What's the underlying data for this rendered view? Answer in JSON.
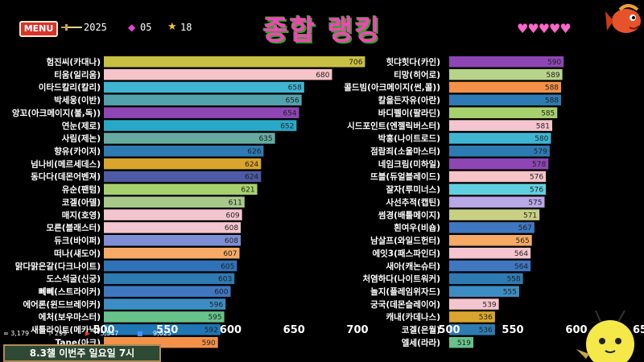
{
  "header": {
    "menu_label": "MENU",
    "year": "2025",
    "gem_count": "05",
    "star_count": "18",
    "title": "종합 랭킹",
    "hearts": "♥♥♥♥♥"
  },
  "footer": {
    "stat1": "3,179",
    "stat2": "299",
    "stat3": "5,547",
    "stat4": "9,025",
    "banner": "8.3챌 이번주 일요일 7시"
  },
  "colors": {
    "title": "#ff3fbf",
    "menu_button": "#d8322b",
    "background": "#000000"
  },
  "chart_data": [
    {
      "type": "bar",
      "orientation": "horizontal",
      "xlim": [
        500,
        700
      ],
      "ticks": [
        "500",
        "550",
        "600",
        "650",
        "700"
      ],
      "categories": [
        "험진씨(카대나)",
        "티움(일리움)",
        "이타드칼리(칼리)",
        "박세웅(이반)",
        "앙꼬(아크메이지(불,독))",
        "연눈(제로)",
        "사림(제논)",
        "향유(카이저)",
        "넘나비(메르세데스)",
        "동다다(데몬어벤져)",
        "유순(팬텀)",
        "코겔(아델)",
        "매지(호영)",
        "모른(블래스터)",
        "듀크(바이퍼)",
        "떠나(섀도어)",
        "맑다맑은갈(다크나이트)",
        "도스석굴(신궁)",
        "뻬뻬(스트라이커)",
        "에어론(윈드브레이커)",
        "에처(보우마스터)",
        "새틀라이트(메카닉)",
        "Tane(아크)"
      ],
      "values": [
        706,
        680,
        658,
        656,
        654,
        652,
        635,
        626,
        624,
        624,
        621,
        611,
        609,
        608,
        608,
        607,
        605,
        603,
        600,
        596,
        595,
        592,
        590
      ],
      "colors": [
        "#c8c043",
        "#f6c3c7",
        "#3fb5d2",
        "#51a2ab",
        "#8d46b4",
        "#28a8c8",
        "#66aaa0",
        "#2e7bb3",
        "#d9a52c",
        "#4d5aa5",
        "#a7d16d",
        "#a6c98b",
        "#f4c5cf",
        "#f4c5cf",
        "#7f8fd6",
        "#f6aa66",
        "#3072b8",
        "#2e7bb3",
        "#3f77c1",
        "#3c8dc4",
        "#67c38a",
        "#1f76b5",
        "#f39149"
      ]
    },
    {
      "type": "bar",
      "orientation": "horizontal",
      "xlim": [
        500,
        650
      ],
      "ticks": [
        "500",
        "550",
        "600",
        "65"
      ],
      "categories": [
        "힛댜힛다(카인)",
        "티망(히어로)",
        "콜드빔(아크메이지(썬,콜))",
        "칼을든자유(아란)",
        "바디펠이(팔라딘)",
        "시드포인트(엔젤릭버스터)",
        "박홍(나이트로드)",
        "점람죄(소울마스터)",
        "네임크림(미하일)",
        "뜨블(듀얼블레이드)",
        "잘자(루미너스)",
        "사선추적(캡틴)",
        "썸경(배틀메이지)",
        "흰여우(비숍)",
        "남살프(와일드헌터)",
        "에잇3(패스파인더)",
        "새아(캐논슈터)",
        "처염하다(나이트워커)",
        "놀지(플레임위자드)",
        "궁국(데몬슬레이어)",
        "캐내(카데나스)",
        "코겔(은월)",
        "엘세(라라)"
      ],
      "values": [
        590,
        589,
        588,
        588,
        585,
        581,
        580,
        579,
        578,
        576,
        576,
        575,
        571,
        567,
        565,
        564,
        564,
        558,
        555,
        539,
        536,
        536,
        519
      ],
      "colors": [
        "#8d46b4",
        "#b8d38a",
        "#f39149",
        "#2e7bb3",
        "#a7d16d",
        "#f4c5cf",
        "#3fb5d2",
        "#2e7bb3",
        "#8d46b4",
        "#f6c3c7",
        "#60d0e0",
        "#b9a7e6",
        "#c8d083",
        "#3f77c1",
        "#f6aa66",
        "#f4c5cf",
        "#3f77c1",
        "#2e7bb3",
        "#3c8dc4",
        "#f4c5cf",
        "#d9a52c",
        "#2e7bb3",
        "#67c38a"
      ]
    }
  ]
}
